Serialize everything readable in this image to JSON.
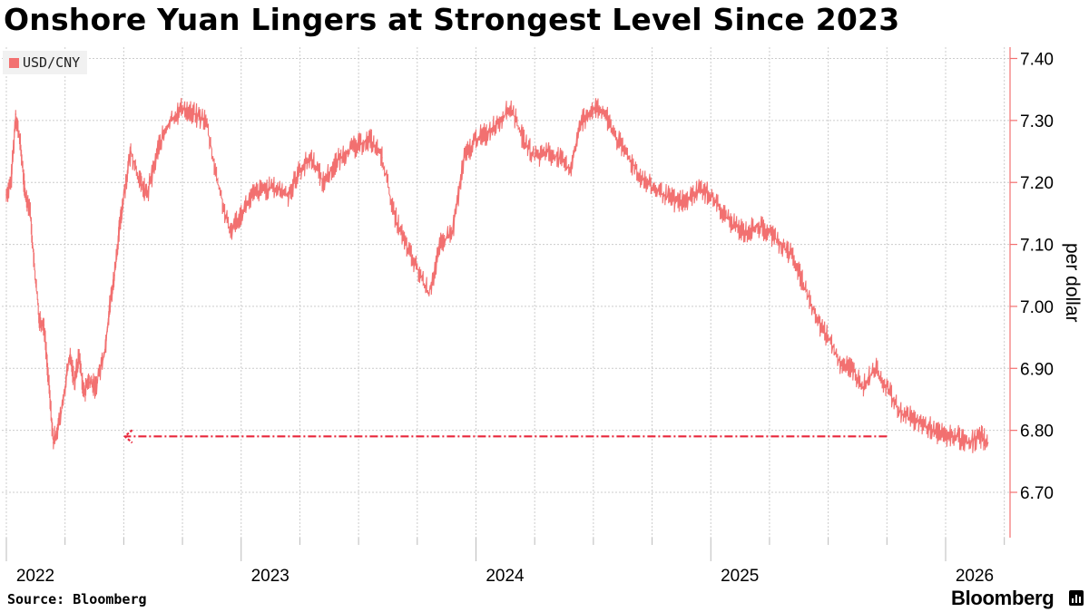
{
  "header": {
    "title": "Onshore Yuan Lingers at Strongest Level Since 2023"
  },
  "legend": {
    "label": "USD/CNY",
    "color": "#f27070"
  },
  "footer": {
    "source": "Source: Bloomberg",
    "brand": "Bloomberg"
  },
  "colors": {
    "series": "#f27070",
    "axis": "#f27070",
    "annotation": "#e8283c",
    "grid": "#cccccc"
  },
  "chart_data": {
    "type": "line",
    "title": "Onshore Yuan Lingers at Strongest Level Since 2023",
    "ylabel": "per dollar",
    "xlabel": "",
    "ylim": [
      6.62,
      7.42
    ],
    "xlim": [
      2022.0,
      2026.3
    ],
    "y_ticks": [
      6.7,
      6.8,
      6.9,
      7.0,
      7.1,
      7.2,
      7.3,
      7.4
    ],
    "y_tick_labels": [
      "6.70",
      "6.80",
      "6.90",
      "7.00",
      "7.10",
      "7.20",
      "7.30",
      "7.40"
    ],
    "x_tick_labels": [
      {
        "label": "2022",
        "x": 2022.0
      },
      {
        "label": "2023",
        "x": 2023.0
      },
      {
        "label": "2024",
        "x": 2024.0
      },
      {
        "label": "2025",
        "x": 2025.0
      },
      {
        "label": "2026",
        "x": 2026.0
      }
    ],
    "grid": true,
    "y_axis_side": "right",
    "legend_position": "top-left",
    "series": [
      {
        "name": "USD/CNY",
        "x": [
          2022.0,
          2022.02,
          2022.04,
          2022.06,
          2022.08,
          2022.1,
          2022.12,
          2022.14,
          2022.16,
          2022.18,
          2022.2,
          2022.23,
          2022.27,
          2022.29,
          2022.31,
          2022.33,
          2022.35,
          2022.38,
          2022.42,
          2022.44,
          2022.46,
          2022.48,
          2022.5,
          2022.53,
          2022.57,
          2022.6,
          2022.65,
          2022.7,
          2022.75,
          2022.8,
          2022.85,
          2022.9,
          2022.95,
          2023.0,
          2023.05,
          2023.1,
          2023.15,
          2023.2,
          2023.25,
          2023.3,
          2023.35,
          2023.4,
          2023.45,
          2023.5,
          2023.55,
          2023.6,
          2023.65,
          2023.7,
          2023.75,
          2023.8,
          2023.85,
          2023.9,
          2023.95,
          2024.0,
          2024.05,
          2024.1,
          2024.15,
          2024.2,
          2024.25,
          2024.3,
          2024.35,
          2024.4,
          2024.45,
          2024.5,
          2024.55,
          2024.6,
          2024.65,
          2024.7,
          2024.75,
          2024.8,
          2024.85,
          2024.9,
          2024.95,
          2025.0,
          2025.05,
          2025.1,
          2025.15,
          2025.2,
          2025.25,
          2025.3,
          2025.35,
          2025.4,
          2025.45,
          2025.5,
          2025.55,
          2025.6,
          2025.65,
          2025.7,
          2025.75,
          2025.8,
          2025.85,
          2025.9,
          2025.95,
          2026.0,
          2026.05,
          2026.1,
          2026.15,
          2026.18
        ],
        "values": [
          7.18,
          7.2,
          7.31,
          7.26,
          7.18,
          7.16,
          7.06,
          6.98,
          6.97,
          6.88,
          6.78,
          6.82,
          6.92,
          6.88,
          6.92,
          6.86,
          6.88,
          6.87,
          6.93,
          7.0,
          7.05,
          7.12,
          7.18,
          7.25,
          7.2,
          7.18,
          7.26,
          7.3,
          7.32,
          7.31,
          7.3,
          7.2,
          7.12,
          7.15,
          7.18,
          7.19,
          7.19,
          7.18,
          7.22,
          7.24,
          7.2,
          7.23,
          7.25,
          7.26,
          7.27,
          7.24,
          7.15,
          7.1,
          7.06,
          7.02,
          7.1,
          7.12,
          7.24,
          7.27,
          7.28,
          7.3,
          7.32,
          7.27,
          7.24,
          7.25,
          7.24,
          7.22,
          7.3,
          7.32,
          7.31,
          7.27,
          7.24,
          7.21,
          7.19,
          7.18,
          7.17,
          7.17,
          7.19,
          7.18,
          7.15,
          7.13,
          7.12,
          7.13,
          7.12,
          7.1,
          7.08,
          7.03,
          6.98,
          6.95,
          6.91,
          6.9,
          6.87,
          6.9,
          6.87,
          6.83,
          6.82,
          6.81,
          6.8,
          6.79,
          6.79,
          6.78,
          6.79,
          6.78
        ]
      }
    ],
    "annotations": [
      {
        "type": "arrow",
        "style": "dash-dot",
        "y": 6.78,
        "x_from": 2025.7,
        "x_to": 2022.42
      }
    ]
  }
}
